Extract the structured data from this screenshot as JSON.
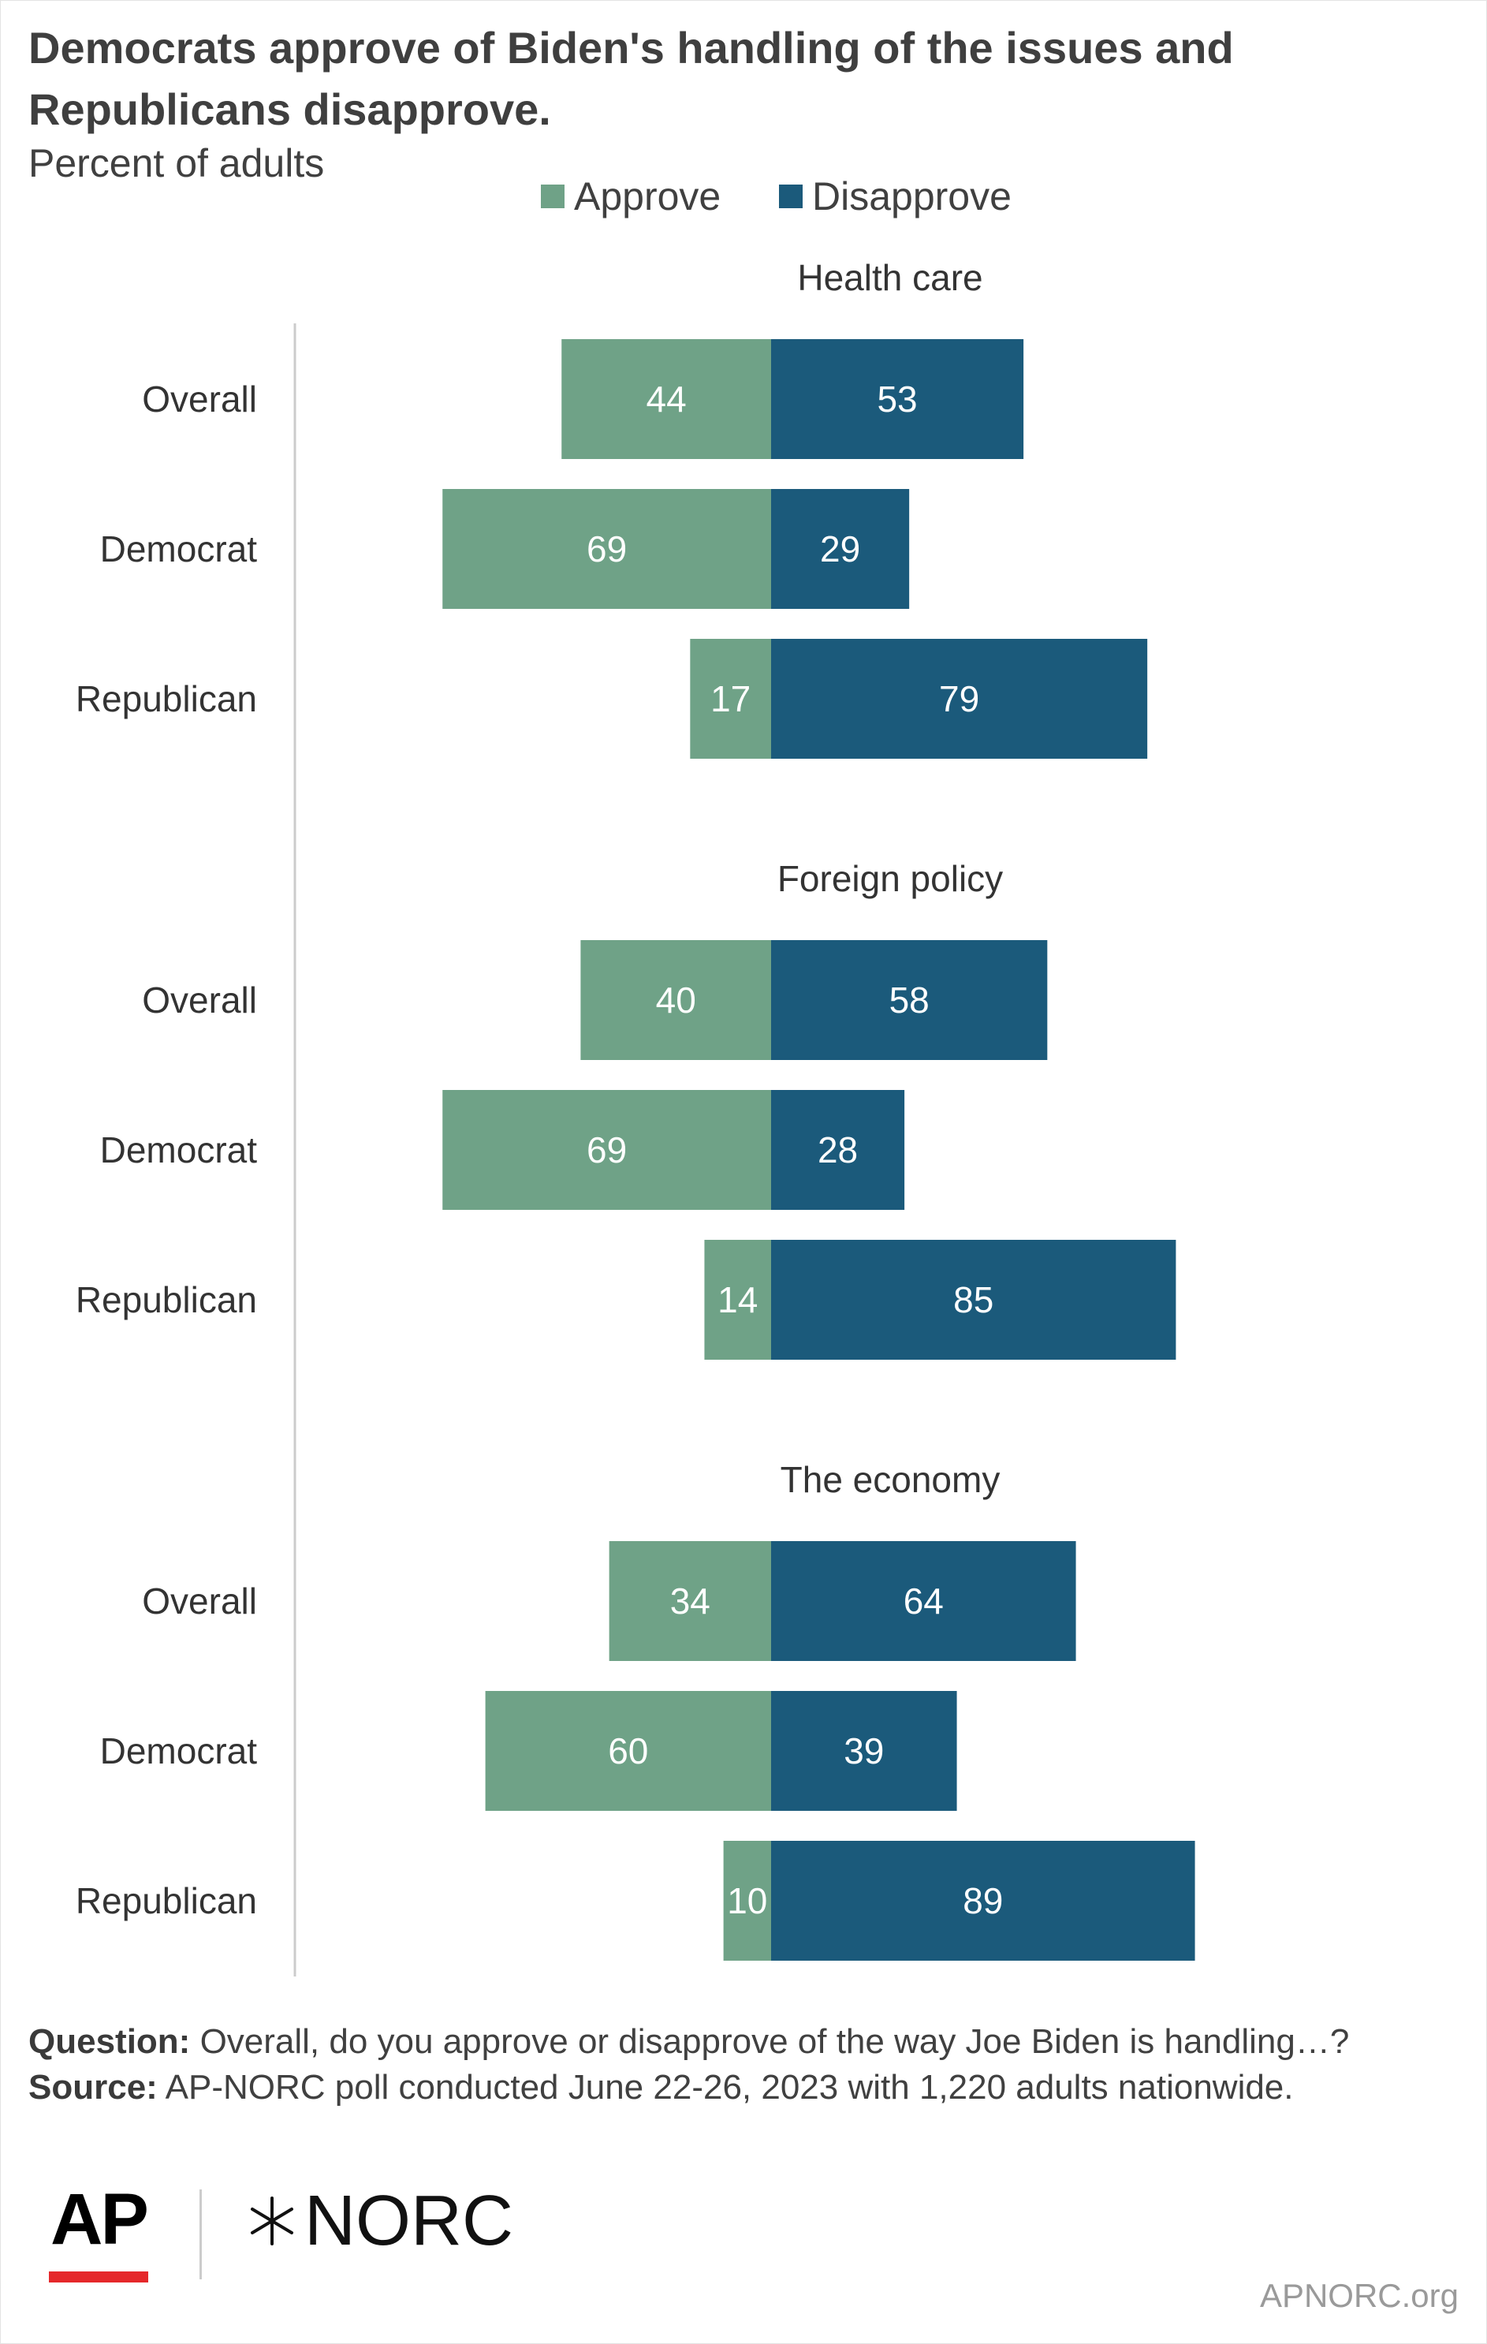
{
  "title": "Democrats approve of Biden's handling of the issues and Republicans disapprove.",
  "subtitle": "Percent of adults",
  "legend": [
    {
      "label": "Approve",
      "color": "#6fa287"
    },
    {
      "label": "Disapprove",
      "color": "#1b5a7b"
    }
  ],
  "chart_data": {
    "type": "bar",
    "orientation": "horizontal-diverging",
    "ylabel": "",
    "xlabel": "",
    "grid": false,
    "legend_position": "top",
    "series": [
      {
        "name": "Approve",
        "color": "#6fa287"
      },
      {
        "name": "Disapprove",
        "color": "#1b5a7b"
      }
    ],
    "groups": [
      {
        "label": "Health care",
        "rows": [
          {
            "category": "Overall",
            "approve": 44,
            "disapprove": 53
          },
          {
            "category": "Democrat",
            "approve": 69,
            "disapprove": 29
          },
          {
            "category": "Republican",
            "approve": 17,
            "disapprove": 79
          }
        ]
      },
      {
        "label": "Foreign policy",
        "rows": [
          {
            "category": "Overall",
            "approve": 40,
            "disapprove": 58
          },
          {
            "category": "Democrat",
            "approve": 69,
            "disapprove": 28
          },
          {
            "category": "Republican",
            "approve": 14,
            "disapprove": 85
          }
        ]
      },
      {
        "label": "The economy",
        "rows": [
          {
            "category": "Overall",
            "approve": 34,
            "disapprove": 64
          },
          {
            "category": "Democrat",
            "approve": 60,
            "disapprove": 39
          },
          {
            "category": "Republican",
            "approve": 10,
            "disapprove": 89
          }
        ]
      }
    ]
  },
  "footnote": {
    "question_label": "Question:",
    "question_text": "Overall, do you approve or disapprove of the way Joe Biden is handling…?",
    "source_label": "Source:",
    "source_text": "AP-NORC poll conducted June 22-26, 2023 with 1,220 adults nationwide."
  },
  "logos": {
    "ap": "AP",
    "norc": "NORC"
  },
  "site": "APNORC.org"
}
